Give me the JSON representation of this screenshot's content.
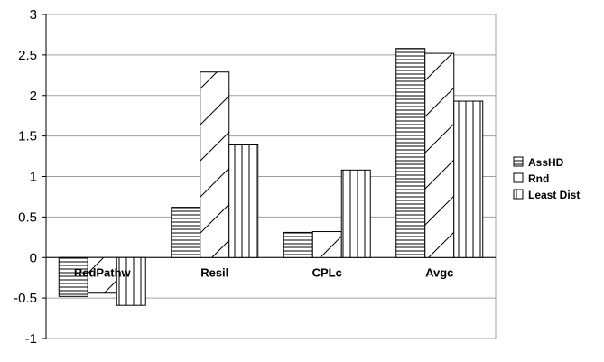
{
  "chart_data": {
    "type": "bar",
    "title": "",
    "xlabel": "",
    "ylabel": "",
    "ylim": [
      -1,
      3
    ],
    "yticks": [
      -1,
      -0.5,
      0,
      0.5,
      1,
      1.5,
      2,
      2.5,
      3
    ],
    "ytick_labels": [
      "-1",
      "-0.5",
      "0",
      "0.5",
      "1",
      "1.5",
      "2",
      "2.5",
      "3"
    ],
    "grid": true,
    "legend_position": "right",
    "categories": [
      "RedPathw",
      "Resil",
      "CPLc",
      "Avgc"
    ],
    "series": [
      {
        "name": "AssHD",
        "pattern": "horizontal-lines",
        "values": [
          -0.48,
          0.62,
          0.31,
          2.58
        ]
      },
      {
        "name": "Rnd",
        "pattern": "diagonal-lines",
        "values": [
          -0.44,
          2.29,
          0.32,
          2.52
        ]
      },
      {
        "name": "Least Dist",
        "pattern": "vertical-lines",
        "values": [
          -0.59,
          1.39,
          1.08,
          1.93
        ]
      }
    ]
  }
}
